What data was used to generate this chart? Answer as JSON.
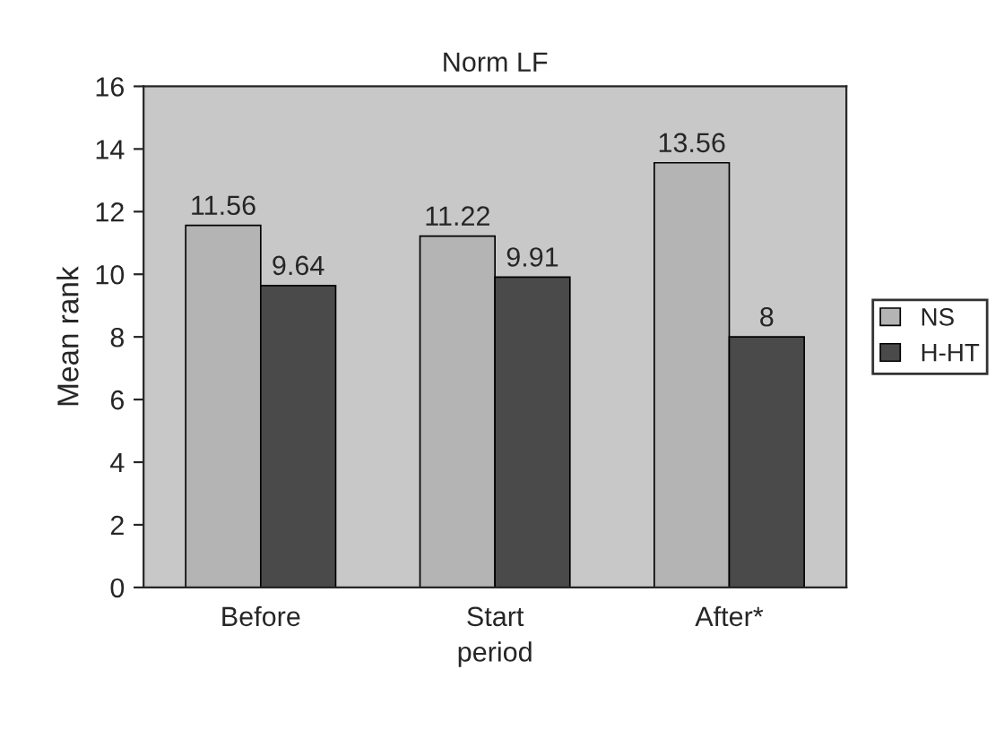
{
  "chart_data": {
    "type": "bar",
    "title": "Norm LF",
    "xlabel": "period",
    "ylabel": "Mean rank",
    "categories": [
      "Before",
      "Start",
      "After*"
    ],
    "series": [
      {
        "name": "NS",
        "color": "#b4b4b4",
        "values": [
          11.56,
          11.22,
          13.56
        ]
      },
      {
        "name": "H-HT",
        "color": "#4a4a4a",
        "values": [
          9.64,
          9.91,
          8
        ]
      }
    ],
    "ylim": [
      0,
      16
    ],
    "yticks": [
      0,
      2,
      4,
      6,
      8,
      10,
      12,
      14,
      16
    ],
    "data_labels": true,
    "legend": "right",
    "grid": false
  }
}
